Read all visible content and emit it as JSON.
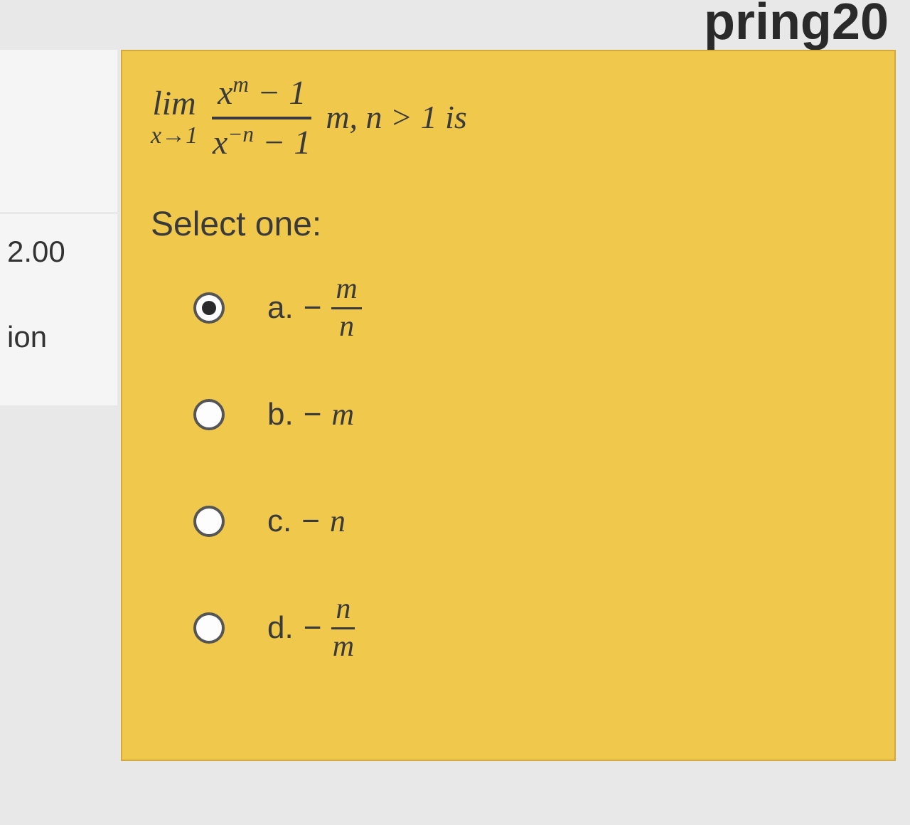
{
  "header": {
    "fragment": "pring20"
  },
  "sidebar": {
    "score": "2.00",
    "nav_fragment": "ion"
  },
  "question": {
    "limit_label": "lim",
    "limit_approach": "x→1",
    "numerator": "x<sup>m</sup> − 1",
    "denominator": "x<sup>−n</sup> − 1",
    "condition": "m, n > 1 is",
    "select_label": "Select one:"
  },
  "options": [
    {
      "letter": "a.",
      "type": "fraction",
      "sign": "−",
      "top": "m",
      "bottom": "n",
      "checked": true
    },
    {
      "letter": "b.",
      "type": "plain",
      "sign": "−",
      "value": "m",
      "checked": false
    },
    {
      "letter": "c.",
      "type": "plain",
      "sign": "−",
      "value": "n",
      "checked": false
    },
    {
      "letter": "d.",
      "type": "fraction",
      "sign": "−",
      "top": "n",
      "bottom": "m",
      "checked": false
    }
  ],
  "colors": {
    "question_bg": "#f0c94c",
    "question_border": "#d4a83a",
    "page_bg": "#e8e8e8",
    "text": "#3a3a3a"
  }
}
